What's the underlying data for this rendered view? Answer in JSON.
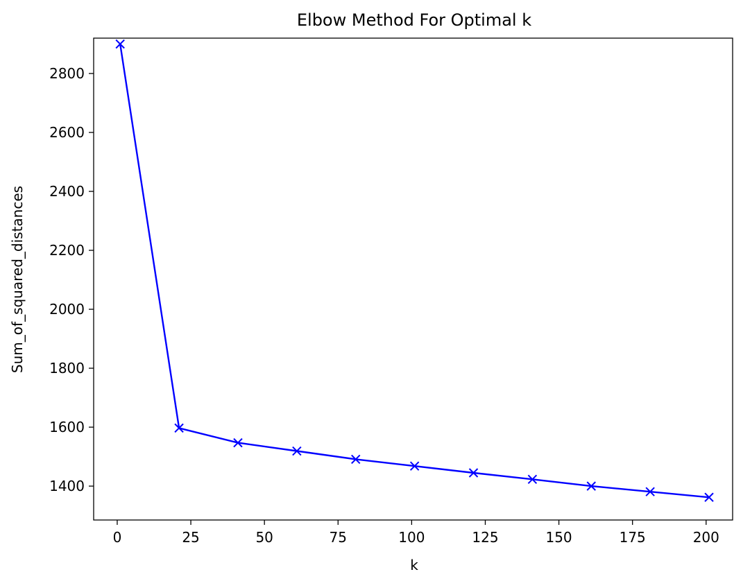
{
  "chart_data": {
    "type": "line",
    "title": "Elbow Method For Optimal k",
    "xlabel": "k",
    "ylabel": "Sum_of_squared_distances",
    "xlim": [
      -8,
      209
    ],
    "ylim": [
      1285,
      2920
    ],
    "xticks": [
      0,
      25,
      50,
      75,
      100,
      125,
      150,
      175,
      200
    ],
    "yticks": [
      1400,
      1600,
      1800,
      2000,
      2200,
      2400,
      2600,
      2800
    ],
    "grid": false,
    "series": [
      {
        "color": "#0000ff",
        "marker": "x",
        "x": [
          1,
          21,
          41,
          61,
          81,
          101,
          121,
          141,
          161,
          181,
          201
        ],
        "y": [
          2900,
          1597,
          1547,
          1519,
          1491,
          1468,
          1445,
          1423,
          1400,
          1381,
          1362
        ]
      }
    ]
  }
}
